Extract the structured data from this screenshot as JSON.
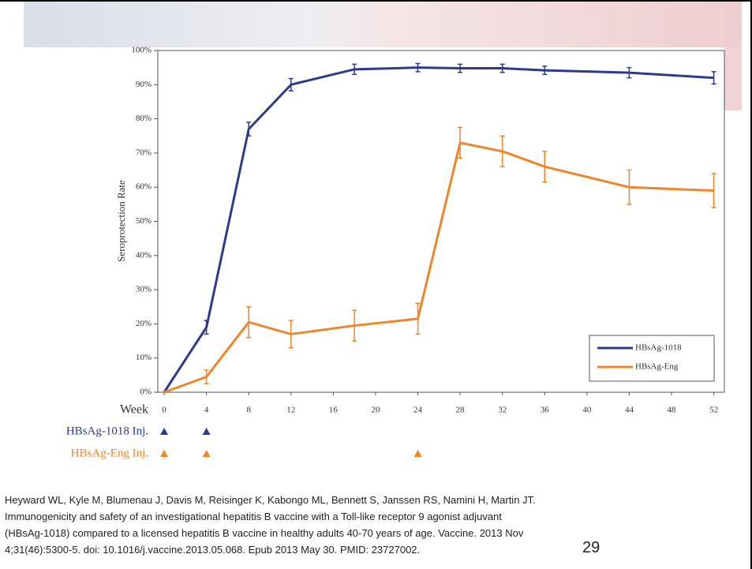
{
  "chart_data": {
    "type": "line",
    "y_label": "Seroprotection Rate",
    "x_label": "Week",
    "x": [
      0,
      4,
      8,
      12,
      18,
      24,
      28,
      32,
      36,
      44,
      52
    ],
    "xlim": [
      -0.6,
      53
    ],
    "xticks": [
      0,
      4,
      8,
      12,
      16,
      20,
      24,
      28,
      32,
      36,
      40,
      44,
      48,
      52
    ],
    "ylim": [
      0,
      100
    ],
    "yticks": [
      {
        "value": 0,
        "label": "0%"
      },
      {
        "value": 10,
        "label": "10%"
      },
      {
        "value": 20,
        "label": "20%"
      },
      {
        "value": 30,
        "label": "30%"
      },
      {
        "value": 40,
        "label": "40%"
      },
      {
        "value": 50,
        "label": "50%"
      },
      {
        "value": 60,
        "label": "60%"
      },
      {
        "value": 70,
        "label": "70%"
      },
      {
        "value": 80,
        "label": "80%"
      },
      {
        "value": 90,
        "label": "90%"
      },
      {
        "value": 100,
        "label": "100%"
      }
    ],
    "legend": "bottom-right",
    "series": [
      {
        "name": "HBsAg-1018",
        "color": "#2e3a8c",
        "values": [
          0,
          19,
          77,
          90,
          94.5,
          95,
          94.8,
          94.8,
          94.2,
          93.5,
          92
        ],
        "errors": [
          0,
          2,
          2,
          1.8,
          1.5,
          1.2,
          1.2,
          1.2,
          1.2,
          1.5,
          1.8
        ]
      },
      {
        "name": "HBsAg-Eng",
        "color": "#f0862a",
        "values": [
          0,
          4.5,
          20.5,
          17,
          19.5,
          21.5,
          73,
          70.5,
          66,
          60,
          59
        ],
        "errors": [
          0,
          2,
          4.5,
          4,
          4.5,
          4.5,
          4.5,
          4.5,
          4.5,
          5,
          5
        ]
      }
    ],
    "injections": [
      {
        "name": "HBsAg-1018 Inj.",
        "color": "#2e3a8c",
        "weeks": [
          0,
          4
        ]
      },
      {
        "name": "HBsAg-Eng Inj.",
        "color": "#f0862a",
        "weeks": [
          0,
          4,
          24
        ]
      }
    ]
  },
  "citation": [
    "Heyward WL, Kyle M, Blumenau J, Davis M, Reisinger K, Kabongo ML, Bennett S, Janssen RS, Namini H, Martin JT.",
    "Immunogenicity and safety of an investigational hepatitis B vaccine with a Toll-like receptor 9 agonist adjuvant",
    "(HBsAg-1018) compared to a licensed hepatitis B vaccine in healthy adults 40-70 years of age. Vaccine. 2013 Nov",
    "4;31(46):5300-5. doi: 10.1016/j.vaccine.2013.05.068. Epub 2013 May 30. PMID: 23727002."
  ],
  "page_number": "29"
}
